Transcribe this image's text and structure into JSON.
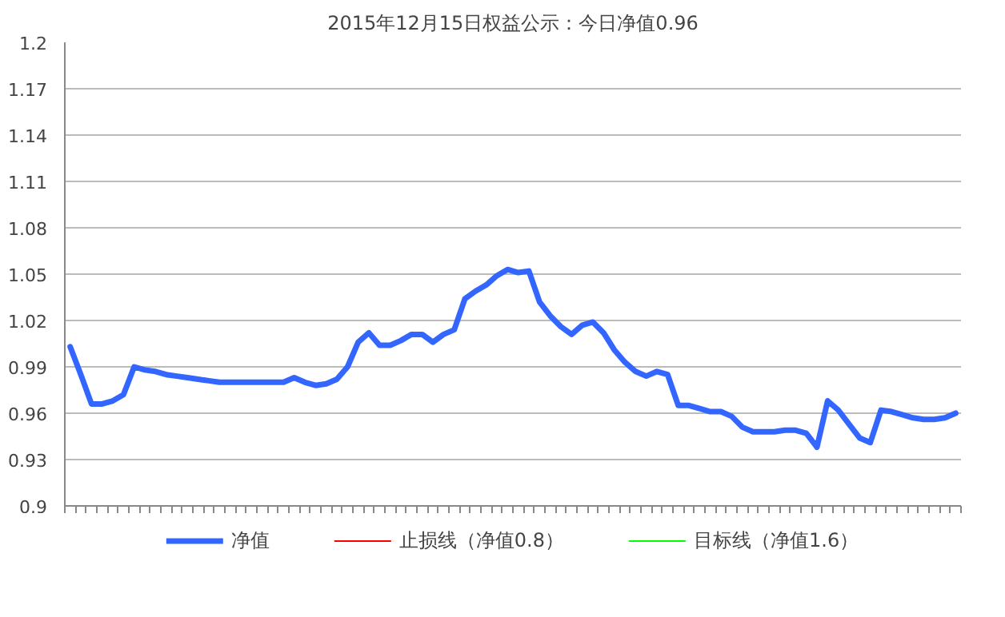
{
  "chart_data": {
    "type": "line",
    "title": "2015年12月15日权益公示：今日净值0.96",
    "categories": [
      null,
      null,
      null,
      null,
      null,
      null,
      null,
      null,
      null,
      null,
      null,
      null,
      null,
      null,
      null,
      null,
      null,
      null,
      null,
      null,
      null,
      null,
      null,
      null,
      null,
      null,
      null,
      null,
      null,
      null,
      null,
      null,
      null,
      null,
      null,
      null,
      null,
      null,
      null,
      null,
      null,
      null,
      null,
      null,
      null,
      null,
      null,
      null,
      null,
      null,
      null,
      null,
      null,
      null,
      null,
      null,
      null,
      null,
      null,
      null,
      null,
      null,
      null,
      null,
      null,
      null,
      null,
      null,
      null,
      null,
      null,
      null,
      null,
      null,
      null,
      null,
      null,
      null,
      null,
      null,
      null,
      null,
      null,
      null
    ],
    "series": [
      {
        "name": "净值",
        "color": "#3366ff",
        "values": [
          1.003,
          0.985,
          0.966,
          0.966,
          0.968,
          0.972,
          0.99,
          0.988,
          0.987,
          0.985,
          0.984,
          0.983,
          0.982,
          0.981,
          0.98,
          0.98,
          0.98,
          0.98,
          0.98,
          0.98,
          0.98,
          0.983,
          0.98,
          0.978,
          0.979,
          0.982,
          0.99,
          1.006,
          1.012,
          1.004,
          1.004,
          1.007,
          1.011,
          1.011,
          1.006,
          1.011,
          1.014,
          1.034,
          1.039,
          1.043,
          1.049,
          1.053,
          1.051,
          1.052,
          1.032,
          1.023,
          1.016,
          1.011,
          1.017,
          1.019,
          1.012,
          1.001,
          0.993,
          0.987,
          0.984,
          0.987,
          0.985,
          0.965,
          0.965,
          0.963,
          0.961,
          0.961,
          0.958,
          0.951,
          0.948,
          0.948,
          0.948,
          0.949,
          0.949,
          0.947,
          0.938,
          0.968,
          0.962,
          0.953,
          0.944,
          0.941,
          0.962,
          0.961,
          0.959,
          0.957,
          0.956,
          0.956,
          0.957,
          0.96
        ]
      },
      {
        "name": "止损线（净值0.8）",
        "color": "#ff0000",
        "values": [
          null,
          null,
          null,
          null,
          null,
          null,
          null,
          null,
          null,
          null,
          null,
          null,
          null,
          null,
          null,
          null,
          null,
          null,
          null,
          null,
          null,
          null,
          null,
          null,
          null,
          null,
          null,
          null,
          null,
          null,
          null,
          null,
          null,
          null,
          null,
          null,
          null,
          null,
          null,
          null,
          null,
          null,
          null,
          null,
          null,
          null,
          null,
          null,
          null,
          null,
          null,
          null,
          null,
          null,
          null,
          null,
          null,
          null,
          null,
          null,
          null,
          null,
          null,
          null,
          null,
          null,
          null,
          null,
          null,
          null,
          null,
          null,
          null,
          null,
          null,
          null,
          null,
          null,
          null,
          null,
          null,
          null,
          null,
          null
        ]
      },
      {
        "name": "目标线（净值1.6）",
        "color": "#00ff00",
        "values": [
          null,
          null,
          null,
          null,
          null,
          null,
          null,
          null,
          null,
          null,
          null,
          null,
          null,
          null,
          null,
          null,
          null,
          null,
          null,
          null,
          null,
          null,
          null,
          null,
          null,
          null,
          null,
          null,
          null,
          null,
          null,
          null,
          null,
          null,
          null,
          null,
          null,
          null,
          null,
          null,
          null,
          null,
          null,
          null,
          null,
          null,
          null,
          null,
          null,
          null,
          null,
          null,
          null,
          null,
          null,
          null,
          null,
          null,
          null,
          null,
          null,
          null,
          null,
          null,
          null,
          null,
          null,
          null,
          null,
          null,
          null,
          null,
          null,
          null,
          null,
          null,
          null,
          null,
          null,
          null,
          null,
          null,
          null,
          null
        ]
      }
    ],
    "ylim": [
      0.9,
      1.2
    ],
    "yticks": [
      0.9,
      0.93,
      0.96,
      0.99,
      1.02,
      1.05,
      1.08,
      1.11,
      1.14,
      1.17,
      1.2
    ],
    "grid": "y",
    "legend": "bottom",
    "tick_labels": "y",
    "marker": "none",
    "line_style": "solid"
  }
}
